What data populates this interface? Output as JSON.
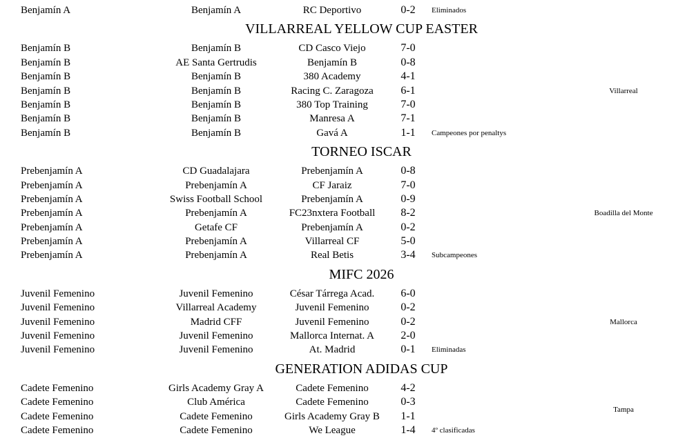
{
  "sections": [
    {
      "title": "",
      "location": "",
      "rows": [
        {
          "cat": "Benjamín A",
          "home": "Benjamín A",
          "away": "RC Deportivo",
          "score": "0-2",
          "note": "Eliminados"
        }
      ]
    },
    {
      "title": "VILLARREAL YELLOW CUP EASTER",
      "location": "Villarreal",
      "rows": [
        {
          "cat": "Benjamín B",
          "home": "Benjamín B",
          "away": "CD Casco Viejo",
          "score": "7-0",
          "note": ""
        },
        {
          "cat": "Benjamín B",
          "home": "AE Santa Gertrudis",
          "away": "Benjamín B",
          "score": "0-8",
          "note": ""
        },
        {
          "cat": "Benjamín B",
          "home": "Benjamín B",
          "away": "380 Academy",
          "score": "4-1",
          "note": ""
        },
        {
          "cat": "Benjamín B",
          "home": "Benjamín B",
          "away": "Racing C. Zaragoza",
          "score": "6-1",
          "note": ""
        },
        {
          "cat": "Benjamín B",
          "home": "Benjamín B",
          "away": "380 Top Training",
          "score": "7-0",
          "note": ""
        },
        {
          "cat": "Benjamín B",
          "home": "Benjamín B",
          "away": "Manresa A",
          "score": "7-1",
          "note": ""
        },
        {
          "cat": "Benjamín B",
          "home": "Benjamín B",
          "away": "Gavá A",
          "score": "1-1",
          "note": "Campeones por penaltys"
        }
      ]
    },
    {
      "title": "TORNEO ISCAR",
      "location": "Boadilla del Monte",
      "rows": [
        {
          "cat": "Prebenjamín A",
          "home": "CD Guadalajara",
          "away": "Prebenjamín A",
          "score": "0-8",
          "note": ""
        },
        {
          "cat": "Prebenjamín A",
          "home": "Prebenjamín A",
          "away": "CF Jaraiz",
          "score": "7-0",
          "note": ""
        },
        {
          "cat": "Prebenjamín A",
          "home": "Swiss Football School",
          "away": "Prebenjamín A",
          "score": "0-9",
          "note": ""
        },
        {
          "cat": "Prebenjamín A",
          "home": "Prebenjamín A",
          "away": "FC23nxtera Football",
          "score": "8-2",
          "note": ""
        },
        {
          "cat": "Prebenjamín A",
          "home": "Getafe CF",
          "away": "Prebenjamín A",
          "score": "0-2",
          "note": ""
        },
        {
          "cat": "Prebenjamín A",
          "home": "Prebenjamín A",
          "away": "Villarreal CF",
          "score": "5-0",
          "note": ""
        },
        {
          "cat": "Prebenjamín A",
          "home": "Prebenjamín A",
          "away": "Real Betis",
          "score": "3-4",
          "note": "Subcampeones"
        }
      ]
    },
    {
      "title": "MIFC 2026",
      "location": "Mallorca",
      "rows": [
        {
          "cat": "Juvenil Femenino",
          "home": "Juvenil Femenino",
          "away": "César Tárrega Acad.",
          "score": "6-0",
          "note": ""
        },
        {
          "cat": "Juvenil Femenino",
          "home": "Villarreal Academy",
          "away": "Juvenil Femenino",
          "score": "0-2",
          "note": ""
        },
        {
          "cat": "Juvenil Femenino",
          "home": "Madrid CFF",
          "away": "Juvenil Femenino",
          "score": "0-2",
          "note": ""
        },
        {
          "cat": "Juvenil Femenino",
          "home": "Juvenil Femenino",
          "away": "Mallorca Internat. A",
          "score": "2-0",
          "note": ""
        },
        {
          "cat": "Juvenil Femenino",
          "home": "Juvenil Femenino",
          "away": "At. Madrid",
          "score": "0-1",
          "note": "Eliminadas"
        }
      ]
    },
    {
      "title": "GENERATION ADIDAS CUP",
      "location": "Tampa",
      "rows": [
        {
          "cat": "Cadete Femenino",
          "home": "Girls Academy Gray A",
          "away": "Cadete Femenino",
          "score": "4-2",
          "note": ""
        },
        {
          "cat": "Cadete Femenino",
          "home": "Club América",
          "away": "Cadete Femenino",
          "score": "0-3",
          "note": ""
        },
        {
          "cat": "Cadete Femenino",
          "home": "Cadete Femenino",
          "away": "Girls Academy Gray B",
          "score": "1-1",
          "note": ""
        },
        {
          "cat": "Cadete Femenino",
          "home": "Cadete Femenino",
          "away": "We League",
          "score": "1-4",
          "note": "4º clasificadas"
        }
      ]
    }
  ]
}
